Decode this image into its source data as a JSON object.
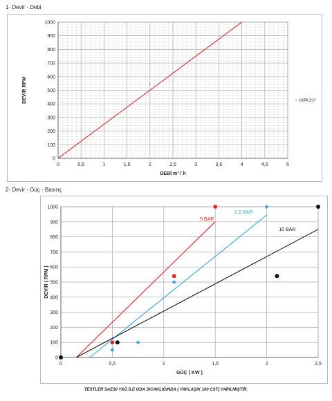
{
  "section1": {
    "heading": "1- Devir - Debi"
  },
  "section2": {
    "heading": "2- Devir - Güç - Basınç"
  },
  "footer": {
    "text": "TESTLER SAE30 YAĞ İLE ODA SICAKLIĞINDA ( YAKLAŞIK 100 CST) YAPILMIŞTIR."
  },
  "chart_data": [
    {
      "type": "line",
      "title": "",
      "xlabel": "DEBİ m³ / h",
      "ylabel": "DEVİR RPM",
      "xlim": [
        0,
        5
      ],
      "ylim": [
        0,
        1000
      ],
      "x_ticks": [
        0,
        0.5,
        1,
        1.5,
        2,
        2.5,
        3,
        3.5,
        4,
        4.5,
        5
      ],
      "x_tick_labels": [
        "0",
        "0,5",
        "1",
        "1,5",
        "2",
        "2,5",
        "3",
        "3,5",
        "4",
        "4,5",
        "5"
      ],
      "y_ticks": [
        0,
        100,
        200,
        300,
        400,
        500,
        600,
        700,
        800,
        900,
        1000
      ],
      "grid": true,
      "legend": "right",
      "series": [
        {
          "name": "KIPK1½\"",
          "color": "#cc3333",
          "marker": "star",
          "points": [
            {
              "x": 2,
              "y": 540
            }
          ]
        },
        {
          "name": "",
          "color": "#cc3333",
          "kind": "trendline",
          "points": [
            {
              "x": 0,
              "y": 0
            },
            {
              "x": 4,
              "y": 1000
            }
          ]
        }
      ]
    },
    {
      "type": "scatter",
      "title": "",
      "xlabel": "GÜÇ ( KW )",
      "ylabel": "DEVİR ( RPM )",
      "xlim": [
        0,
        2.5
      ],
      "ylim": [
        0,
        1000
      ],
      "x_ticks": [
        0,
        0.5,
        1,
        1.5,
        2,
        2.5
      ],
      "x_tick_labels": [
        "0",
        "0,5",
        "1",
        "1,5",
        "2",
        "2,5"
      ],
      "y_ticks": [
        0,
        100,
        200,
        300,
        400,
        500,
        600,
        700,
        800,
        900,
        1000
      ],
      "grid": true,
      "series": [
        {
          "name": "5 BAR",
          "color": "#e02020",
          "marker": "square",
          "points": [
            {
              "x": 0.5,
              "y": 100
            },
            {
              "x": 1.1,
              "y": 540
            },
            {
              "x": 1.5,
              "y": 1000
            }
          ],
          "trendline": [
            {
              "x": 0.15,
              "y": 0
            },
            {
              "x": 1.5,
              "y": 900
            }
          ]
        },
        {
          "name": "2,5 BAR",
          "color": "#3aa7d4",
          "marker": "diamond",
          "points": [
            {
              "x": 0.5,
              "y": 50
            },
            {
              "x": 0.75,
              "y": 100
            },
            {
              "x": 1.1,
              "y": 500
            },
            {
              "x": 2,
              "y": 1000
            }
          ],
          "trendline": [
            {
              "x": 0.28,
              "y": 0
            },
            {
              "x": 2,
              "y": 945
            }
          ]
        },
        {
          "name": "10 BAR",
          "color": "#111111",
          "marker": "circle",
          "points": [
            {
              "x": 0,
              "y": 0
            },
            {
              "x": 0.55,
              "y": 100
            },
            {
              "x": 2.1,
              "y": 540
            },
            {
              "x": 2.5,
              "y": 1000
            }
          ],
          "trendline": [
            {
              "x": 0.15,
              "y": 0
            },
            {
              "x": 2.5,
              "y": 850
            }
          ]
        }
      ]
    }
  ]
}
